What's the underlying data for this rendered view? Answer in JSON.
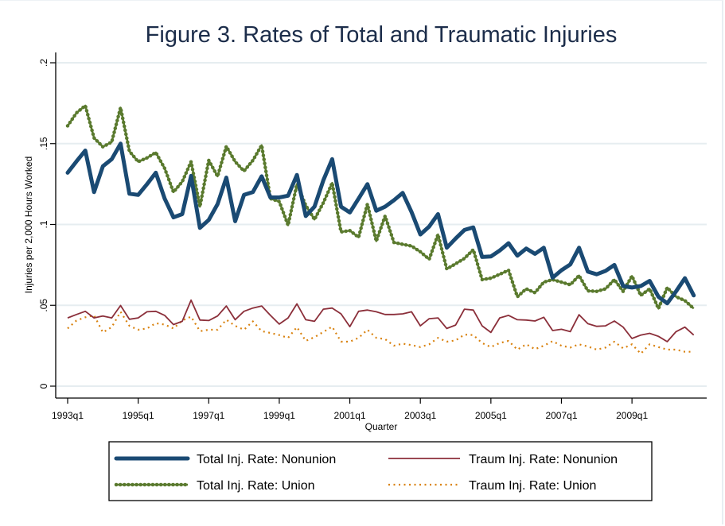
{
  "chart_data": {
    "type": "line",
    "title": "Figure 3. Rates of Total and Traumatic Injuries",
    "xlabel": "Quarter",
    "ylabel": "Injuries per 2,000 Hours Worked",
    "x_start": "1993q1",
    "x_end": "2010q4",
    "n_quarters": 72,
    "xticks": [
      {
        "q": 0,
        "label": "1993q1"
      },
      {
        "q": 8,
        "label": "1995q1"
      },
      {
        "q": 16,
        "label": "1997q1"
      },
      {
        "q": 24,
        "label": "1999q1"
      },
      {
        "q": 32,
        "label": "2001q1"
      },
      {
        "q": 40,
        "label": "2003q1"
      },
      {
        "q": 48,
        "label": "2005q1"
      },
      {
        "q": 56,
        "label": "2007q1"
      },
      {
        "q": 64,
        "label": "2009q1"
      }
    ],
    "yticks": [
      {
        "v": 0,
        "label": "0"
      },
      {
        "v": 0.05,
        "label": ".05"
      },
      {
        "v": 0.1,
        "label": ".1"
      },
      {
        "v": 0.15,
        "label": ".15"
      },
      {
        "v": 0.2,
        "label": ".2"
      }
    ],
    "ylim": [
      0,
      0.2
    ],
    "grid": true,
    "legend_position": "bottom",
    "series": [
      {
        "name": "Total Inj. Rate: Nonunion",
        "color": "#1a4a73",
        "style": "solid-thick",
        "values": [
          0.132,
          0.139,
          0.1457,
          0.12,
          0.136,
          0.1404,
          0.15,
          0.119,
          0.1183,
          0.1249,
          0.132,
          0.116,
          0.1044,
          0.1064,
          0.13,
          0.0979,
          0.1028,
          0.1126,
          0.129,
          0.102,
          0.1183,
          0.12,
          0.1298,
          0.1167,
          0.1167,
          0.1178,
          0.1306,
          0.1052,
          0.111,
          0.1273,
          0.1404,
          0.111,
          0.1074,
          0.116,
          0.1249,
          0.1085,
          0.111,
          0.115,
          0.1195,
          0.1077,
          0.0938,
          0.0987,
          0.1064,
          0.0856,
          0.0913,
          0.0966,
          0.0982,
          0.0799,
          0.0802,
          0.0839,
          0.0884,
          0.0807,
          0.0851,
          0.0818,
          0.0856,
          0.0671,
          0.0717,
          0.0753,
          0.0856,
          0.0708,
          0.0692,
          0.0713,
          0.075,
          0.0619,
          0.061,
          0.0619,
          0.0651,
          0.0553,
          0.0512,
          0.0586,
          0.0668,
          0.0561
        ]
      },
      {
        "name": "Total Inj. Rate: Union",
        "color": "#5a7a2e",
        "style": "dotted-thick",
        "values": [
          0.161,
          0.169,
          0.1735,
          0.1535,
          0.148,
          0.151,
          0.1723,
          0.1453,
          0.1388,
          0.1412,
          0.1445,
          0.1347,
          0.12,
          0.1265,
          0.1388,
          0.111,
          0.1396,
          0.1298,
          0.1483,
          0.1388,
          0.133,
          0.1396,
          0.149,
          0.116,
          0.1142,
          0.0995,
          0.1249,
          0.1118,
          0.1031,
          0.1134,
          0.1257,
          0.0954,
          0.0962,
          0.0921,
          0.1126,
          0.0897,
          0.1052,
          0.0889,
          0.0877,
          0.0867,
          0.0831,
          0.0785,
          0.0938,
          0.0725,
          0.0757,
          0.079,
          0.0844,
          0.0659,
          0.0668,
          0.0692,
          0.0717,
          0.0553,
          0.0602,
          0.0578,
          0.0643,
          0.0659,
          0.0643,
          0.0627,
          0.0684,
          0.0589,
          0.0586,
          0.0602,
          0.0659,
          0.0586,
          0.0681,
          0.0561,
          0.0602,
          0.048,
          0.061,
          0.0553,
          0.0529,
          0.048
        ]
      },
      {
        "name": "Traum Inj. Rate: Nonunion",
        "color": "#8b2f3a",
        "style": "solid-thin",
        "values": [
          0.0422,
          0.0443,
          0.0463,
          0.0422,
          0.0434,
          0.0422,
          0.0499,
          0.0414,
          0.0422,
          0.046,
          0.0463,
          0.0438,
          0.0381,
          0.0401,
          0.0532,
          0.0409,
          0.0406,
          0.0434,
          0.0496,
          0.0411,
          0.0463,
          0.0483,
          0.0496,
          0.0438,
          0.0384,
          0.0422,
          0.0509,
          0.0411,
          0.0401,
          0.0476,
          0.0483,
          0.0447,
          0.0368,
          0.0463,
          0.0471,
          0.046,
          0.0443,
          0.0443,
          0.0447,
          0.046,
          0.0373,
          0.0417,
          0.0422,
          0.0357,
          0.0378,
          0.0476,
          0.0471,
          0.0373,
          0.0332,
          0.0422,
          0.0438,
          0.0411,
          0.0409,
          0.0403,
          0.0426,
          0.0344,
          0.0352,
          0.0337,
          0.0442,
          0.0386,
          0.037,
          0.0373,
          0.0403,
          0.0365,
          0.0295,
          0.0316,
          0.0327,
          0.0308,
          0.0275,
          0.0337,
          0.0365,
          0.0316
        ]
      },
      {
        "name": "Traum Inj. Rate: Union",
        "color": "#d9820f",
        "style": "dotted-thin",
        "values": [
          0.0357,
          0.0406,
          0.0426,
          0.0438,
          0.0332,
          0.0365,
          0.046,
          0.0373,
          0.0349,
          0.0357,
          0.0389,
          0.0381,
          0.0357,
          0.0406,
          0.043,
          0.034,
          0.0349,
          0.0349,
          0.0411,
          0.0373,
          0.0349,
          0.0401,
          0.034,
          0.0329,
          0.0316,
          0.0299,
          0.0365,
          0.028,
          0.0303,
          0.0335,
          0.0368,
          0.0275,
          0.0275,
          0.0299,
          0.0349,
          0.0299,
          0.0291,
          0.025,
          0.0263,
          0.0254,
          0.0242,
          0.0259,
          0.0299,
          0.0275,
          0.0283,
          0.0319,
          0.0316,
          0.0267,
          0.0242,
          0.0267,
          0.028,
          0.0226,
          0.0259,
          0.0229,
          0.025,
          0.0278,
          0.025,
          0.0239,
          0.0259,
          0.0245,
          0.0226,
          0.0239,
          0.0275,
          0.0234,
          0.0259,
          0.0201,
          0.0259,
          0.0242,
          0.0226,
          0.0226,
          0.0213,
          0.0213
        ]
      }
    ],
    "legend": [
      {
        "series": 0,
        "label": "Total Inj. Rate: Nonunion"
      },
      {
        "series": 2,
        "label": "Traum Inj. Rate: Nonunion"
      },
      {
        "series": 1,
        "label": "Total Inj. Rate: Union"
      },
      {
        "series": 3,
        "label": "Traum Inj. Rate: Union"
      }
    ]
  }
}
